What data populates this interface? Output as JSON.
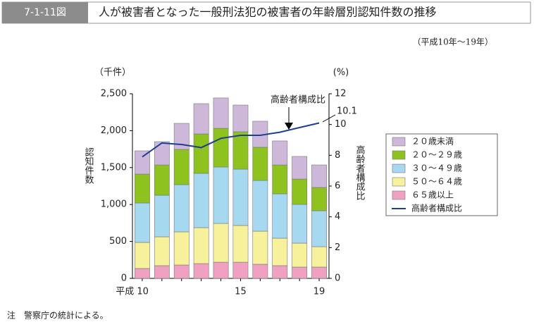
{
  "header": {
    "number": "7-1-11図",
    "title": "人が被害者となった一般刑法犯の被害者の年齢層別認知件数の推移",
    "period": "（平成10年～19年）"
  },
  "chart_data": {
    "type": "stacked-bar-line",
    "y_unit": "（千件）",
    "y_label": "認知件数",
    "y2_unit": "(%)",
    "y2_label": "高齢者構成比",
    "annotation": "高齢者構成比",
    "categories": [
      "平成 10",
      null,
      null,
      null,
      null,
      "15",
      null,
      null,
      null,
      "19"
    ],
    "series": [
      {
        "name": "２０歳未満",
        "color": "#cdb8da",
        "values": [
          315,
          315,
          353,
          410,
          411,
          362,
          353,
          325,
          306,
          305
        ]
      },
      {
        "name": "２０～２９歳",
        "color": "#8dc21f",
        "values": [
          391,
          410,
          477,
          534,
          524,
          506,
          449,
          391,
          343,
          315
        ]
      },
      {
        "name": "３０～４９歳",
        "color": "#a6d8f0",
        "values": [
          534,
          563,
          639,
          735,
          764,
          763,
          687,
          601,
          525,
          487
        ]
      },
      {
        "name": "５０～６４歳",
        "color": "#f7f19c",
        "values": [
          353,
          391,
          449,
          487,
          525,
          497,
          448,
          372,
          324,
          276
        ]
      },
      {
        "name": "６５歳以上",
        "color": "#f0a0c0",
        "values": [
          134,
          172,
          181,
          200,
          219,
          219,
          191,
          172,
          153,
          153
        ]
      },
      {
        "name": "高齢者構成比",
        "color": "#1d3f8f",
        "axis": "y2",
        "values": [
          7.9,
          8.8,
          8.7,
          8.5,
          9.1,
          9.3,
          9.3,
          9.5,
          9.8,
          10.1
        ]
      }
    ],
    "ylim": [
      0,
      2500
    ],
    "yticks": [
      0,
      500,
      {
        "value": 1000,
        "label": "1,000"
      },
      {
        "value": 1500,
        "label": "1,500"
      },
      {
        "value": 2000,
        "label": "2,000"
      },
      {
        "value": 2500,
        "label": "2,500"
      }
    ],
    "y2lim": [
      0,
      12
    ],
    "y2ticks": [
      0,
      2,
      4,
      6,
      8,
      10,
      12
    ]
  },
  "footnote": "注　警察庁の統計による。"
}
